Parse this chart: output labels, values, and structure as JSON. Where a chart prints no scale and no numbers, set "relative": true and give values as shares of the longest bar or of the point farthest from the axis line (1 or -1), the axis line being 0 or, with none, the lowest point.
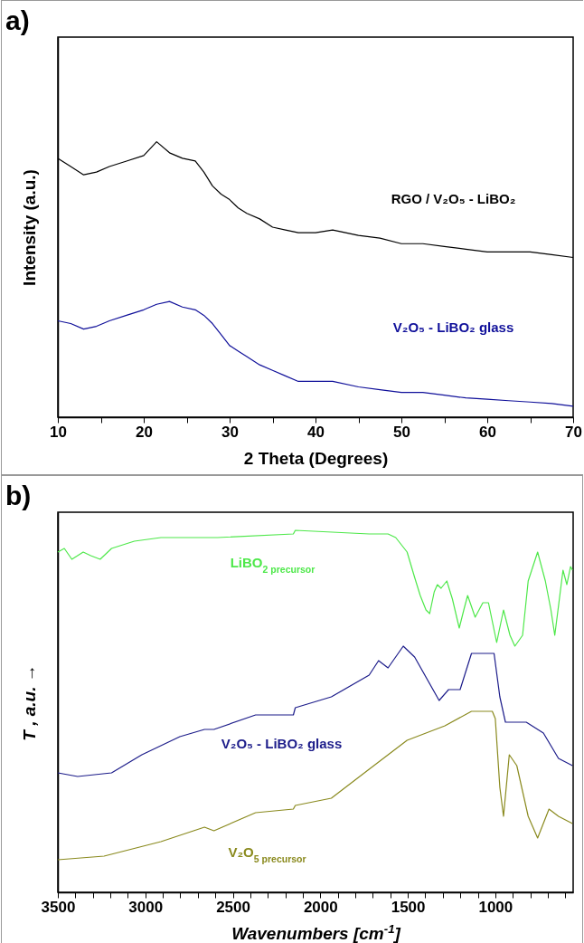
{
  "chart_data": [
    {
      "type": "line",
      "title": "a)",
      "xlabel": "2 Theta (Degrees)",
      "ylabel": "Intensity (a.u.)",
      "relative": true,
      "grid": false,
      "legend": false,
      "marker": "none",
      "line_style": "solid",
      "tick_labels": "x",
      "xlim": [
        10,
        70
      ],
      "xticks": [
        10,
        {
          "value": 15,
          "label": null
        },
        20,
        {
          "value": 25,
          "label": null
        },
        30,
        {
          "value": 35,
          "label": null
        },
        40,
        {
          "value": 45,
          "label": null
        },
        50,
        {
          "value": 55,
          "label": null
        },
        60,
        {
          "value": 65,
          "label": null
        },
        70
      ],
      "x": [
        10,
        11.5,
        13,
        14.5,
        16,
        18,
        20,
        21.5,
        23,
        24.5,
        26,
        27,
        28,
        29,
        30,
        31,
        32,
        33.5,
        35,
        36.5,
        38,
        40,
        42,
        45,
        47.5,
        50,
        52.5,
        55,
        57.5,
        60,
        62.5,
        65,
        67.5,
        70
      ],
      "series": [
        {
          "name": "RGO / V₂O₅ - LiBO₂",
          "color": "#000000",
          "values": [
            0.94,
            0.91,
            0.88,
            0.89,
            0.91,
            0.93,
            0.95,
            1.0,
            0.96,
            0.94,
            0.93,
            0.89,
            0.84,
            0.81,
            0.79,
            0.76,
            0.74,
            0.72,
            0.69,
            0.68,
            0.67,
            0.67,
            0.68,
            0.66,
            0.65,
            0.63,
            0.63,
            0.62,
            0.61,
            0.6,
            0.6,
            0.6,
            0.59,
            0.58
          ]
        },
        {
          "name": "V₂O₅ - LiBO₂ glass",
          "color": "#10109a",
          "values": [
            0.35,
            0.34,
            0.32,
            0.33,
            0.35,
            0.37,
            0.39,
            0.41,
            0.42,
            0.4,
            0.39,
            0.37,
            0.34,
            0.3,
            0.26,
            0.24,
            0.22,
            0.19,
            0.17,
            0.15,
            0.13,
            0.13,
            0.13,
            0.11,
            0.1,
            0.09,
            0.09,
            0.08,
            0.07,
            0.065,
            0.06,
            0.055,
            0.05,
            0.04
          ]
        }
      ]
    },
    {
      "type": "line",
      "title": "b)",
      "xlabel": "Wavenumbers [cm$^{-1}$]",
      "ylabel": "T , a.u. →",
      "relative": true,
      "grid": false,
      "legend": false,
      "marker": "none",
      "line_style": "solid",
      "tick_labels": "x",
      "xlim": [
        3500,
        555
      ],
      "xticks": [
        3500,
        {
          "value": 3400,
          "label": null
        },
        {
          "value": 3300,
          "label": null
        },
        {
          "value": 3200,
          "label": null
        },
        {
          "value": 3100,
          "label": null
        },
        3000,
        {
          "value": 2900,
          "label": null
        },
        {
          "value": 2800,
          "label": null
        },
        {
          "value": 2700,
          "label": null
        },
        {
          "value": 2600,
          "label": null
        },
        2500,
        {
          "value": 2400,
          "label": null
        },
        {
          "value": 2300,
          "label": null
        },
        {
          "value": 2200,
          "label": null
        },
        {
          "value": 2100,
          "label": null
        },
        2000,
        {
          "value": 1900,
          "label": null
        },
        {
          "value": 1800,
          "label": null
        },
        {
          "value": 1700,
          "label": null
        },
        {
          "value": 1600,
          "label": null
        },
        1500,
        {
          "value": 1400,
          "label": null
        },
        {
          "value": 1300,
          "label": null
        },
        {
          "value": 1200,
          "label": null
        },
        {
          "value": 1100,
          "label": null
        },
        1000,
        {
          "value": 900,
          "label": null
        },
        {
          "value": 800,
          "label": null
        },
        {
          "value": 700,
          "label": null
        },
        {
          "value": 600,
          "label": null
        }
      ],
      "series": [
        {
          "name": "LiBO$_{2 precursor}$",
          "color": "#4ee84a",
          "x": [
            3500,
            3463,
            3420,
            3355,
            3312,
            3258,
            3193,
            3063,
            2911,
            2587,
            2154,
            2143,
            1721,
            1613,
            1569,
            1504,
            1461,
            1429,
            1396,
            1375,
            1349,
            1331,
            1310,
            1277,
            1245,
            1206,
            1180,
            1158,
            1115,
            1071,
            1039,
            992,
            953,
            916,
            888,
            844,
            812,
            758,
            714,
            682,
            660,
            639,
            613,
            591,
            570,
            559
          ],
          "values": [
            0.94,
            0.95,
            0.92,
            0.94,
            0.93,
            0.92,
            0.95,
            0.97,
            0.98,
            0.98,
            0.99,
            1.0,
            0.99,
            0.99,
            0.98,
            0.94,
            0.87,
            0.82,
            0.78,
            0.77,
            0.83,
            0.85,
            0.84,
            0.86,
            0.81,
            0.73,
            0.78,
            0.82,
            0.76,
            0.8,
            0.8,
            0.69,
            0.78,
            0.71,
            0.68,
            0.71,
            0.86,
            0.94,
            0.86,
            0.78,
            0.71,
            0.79,
            0.89,
            0.85,
            0.9,
            0.89
          ]
        },
        {
          "name": "V₂O₅ - LiBO₂ glass",
          "color": "#1c1c8a",
          "x": [
            3500,
            3387,
            3193,
            3020,
            2803,
            2662,
            2608,
            2370,
            2154,
            2143,
            1937,
            1721,
            1667,
            1613,
            1526,
            1461,
            1321,
            1267,
            1201,
            1136,
            1007,
            974,
            942,
            898,
            823,
            725,
            639,
            559
          ],
          "values": [
            0.33,
            0.32,
            0.33,
            0.38,
            0.43,
            0.45,
            0.45,
            0.49,
            0.49,
            0.51,
            0.54,
            0.6,
            0.64,
            0.62,
            0.68,
            0.65,
            0.53,
            0.56,
            0.56,
            0.66,
            0.66,
            0.54,
            0.47,
            0.47,
            0.47,
            0.44,
            0.37,
            0.35
          ]
        },
        {
          "name": "V₂O$_{5 precursor}$",
          "color": "#8a8a1e",
          "x": [
            3500,
            3236,
            2911,
            2662,
            2608,
            2370,
            2154,
            2143,
            1937,
            1721,
            1504,
            1288,
            1136,
            1017,
            1000,
            974,
            953,
            920,
            877,
            812,
            758,
            693,
            639,
            559
          ],
          "values": [
            0.09,
            0.1,
            0.14,
            0.18,
            0.17,
            0.22,
            0.23,
            0.24,
            0.26,
            0.34,
            0.42,
            0.46,
            0.5,
            0.5,
            0.48,
            0.29,
            0.21,
            0.38,
            0.35,
            0.21,
            0.15,
            0.23,
            0.21,
            0.19
          ]
        }
      ]
    }
  ]
}
